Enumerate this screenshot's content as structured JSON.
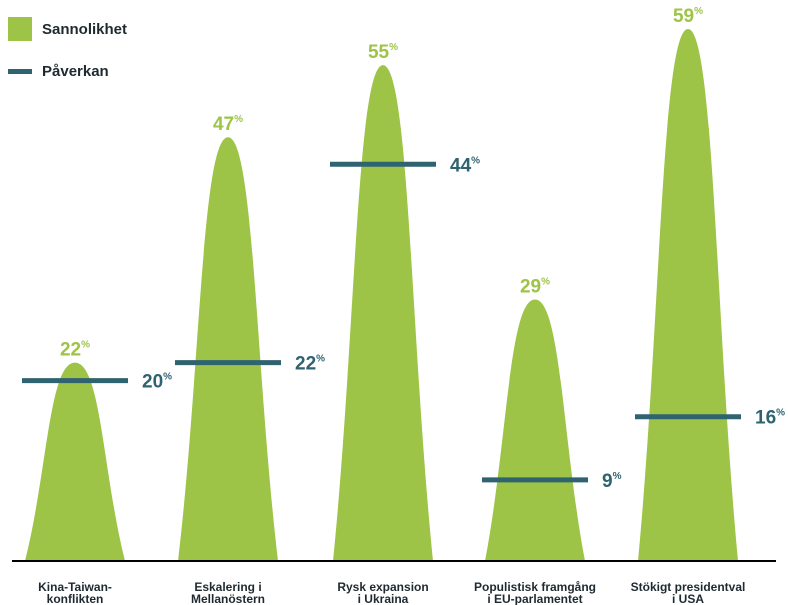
{
  "legend": {
    "items": [
      {
        "label": "Sannolikhet",
        "kind": "swatch",
        "color": "#9dc447"
      },
      {
        "label": "Påverkan",
        "kind": "line",
        "color": "#2f6370"
      }
    ]
  },
  "chart_data": {
    "type": "bar",
    "categories": [
      [
        "Kina-Taiwan-",
        "konflikten"
      ],
      [
        "Eskalering i",
        "Mellanöstern"
      ],
      [
        "Rysk expansion",
        "i Ukraina"
      ],
      [
        "Populistisk framgång",
        "i EU-parlamentet"
      ],
      [
        "Stökigt presidentval",
        "i USA"
      ]
    ],
    "series": [
      {
        "name": "Sannolikhet",
        "values": [
          22,
          47,
          55,
          29,
          59
        ],
        "color": "#9dc447"
      },
      {
        "name": "Påverkan",
        "values": [
          20,
          22,
          44,
          9,
          16
        ],
        "color": "#2f6370"
      }
    ],
    "unit": "%",
    "ylim": [
      0,
      60
    ],
    "grid": false,
    "legend_position": "top-left"
  }
}
